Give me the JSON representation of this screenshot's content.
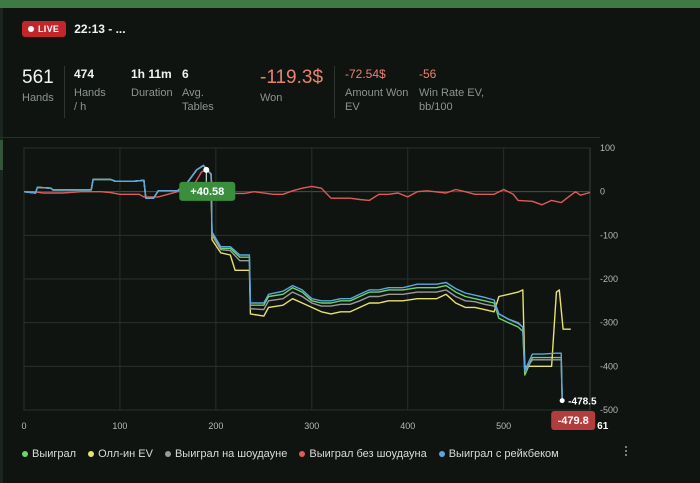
{
  "session": {
    "live_label": "LIVE",
    "title": "22:13 - ..."
  },
  "stats": [
    {
      "value": "561",
      "label": "Hands",
      "big": true,
      "red": false
    },
    {
      "value": "474",
      "label": "Hands / h",
      "big": false,
      "red": false
    },
    {
      "value": "1h 11m",
      "label": "Duration",
      "big": false,
      "red": false
    },
    {
      "value": "6",
      "label": "Avg. Tables",
      "big": false,
      "red": false
    },
    {
      "value": "-119.3$",
      "label": "Won",
      "big": true,
      "red": true
    },
    {
      "value": "-72.54$",
      "label": "Amount Won EV",
      "big": false,
      "red": true
    },
    {
      "value": "-56",
      "label": "Win Rate EV, bb/100",
      "big": false,
      "red": true
    }
  ],
  "chart_data": {
    "type": "line",
    "xlim": [
      0,
      590
    ],
    "ylim": [
      -500,
      100
    ],
    "x_ticks": [
      "0",
      "100",
      "200",
      "300",
      "400",
      "500"
    ],
    "x_tick_values": [
      0,
      100,
      200,
      300,
      400,
      500
    ],
    "y_ticks": [
      "100",
      "0",
      "-100",
      "-200",
      "-300",
      "-400",
      "-500"
    ],
    "y_tick_values": [
      100,
      0,
      -100,
      -200,
      -300,
      -400,
      -500
    ],
    "grid": true,
    "legend_position": "bottom-left",
    "series": [
      {
        "name": "Выиграл",
        "color": "#6fd46a",
        "points": [
          [
            0,
            0
          ],
          [
            12,
            -3
          ],
          [
            14,
            10
          ],
          [
            28,
            8
          ],
          [
            30,
            4
          ],
          [
            45,
            4
          ],
          [
            55,
            4
          ],
          [
            70,
            4
          ],
          [
            72,
            28
          ],
          [
            90,
            28
          ],
          [
            95,
            24
          ],
          [
            115,
            24
          ],
          [
            125,
            26
          ],
          [
            127,
            -15
          ],
          [
            135,
            -15
          ],
          [
            140,
            2
          ],
          [
            160,
            2
          ],
          [
            170,
            20
          ],
          [
            180,
            50
          ],
          [
            187,
            60
          ],
          [
            195,
            40
          ],
          [
            196,
            -95
          ],
          [
            205,
            -130
          ],
          [
            215,
            -130
          ],
          [
            225,
            -150
          ],
          [
            235,
            -150
          ],
          [
            236,
            -260
          ],
          [
            250,
            -260
          ],
          [
            255,
            -240
          ],
          [
            270,
            -235
          ],
          [
            280,
            -220
          ],
          [
            290,
            -230
          ],
          [
            300,
            -250
          ],
          [
            310,
            -255
          ],
          [
            320,
            -255
          ],
          [
            330,
            -250
          ],
          [
            340,
            -250
          ],
          [
            350,
            -240
          ],
          [
            360,
            -230
          ],
          [
            370,
            -230
          ],
          [
            380,
            -225
          ],
          [
            395,
            -225
          ],
          [
            410,
            -220
          ],
          [
            430,
            -220
          ],
          [
            440,
            -215
          ],
          [
            450,
            -230
          ],
          [
            460,
            -240
          ],
          [
            470,
            -245
          ],
          [
            480,
            -250
          ],
          [
            490,
            -255
          ],
          [
            495,
            -290
          ],
          [
            505,
            -300
          ],
          [
            515,
            -310
          ],
          [
            520,
            -320
          ],
          [
            522,
            -420
          ],
          [
            530,
            -380
          ],
          [
            540,
            -380
          ],
          [
            555,
            -380
          ],
          [
            560,
            -380
          ],
          [
            561,
            -479.8
          ]
        ]
      },
      {
        "name": "Олл-ин EV",
        "color": "#e6e26a",
        "points": [
          [
            0,
            0
          ],
          [
            12,
            -3
          ],
          [
            14,
            10
          ],
          [
            28,
            8
          ],
          [
            30,
            4
          ],
          [
            45,
            4
          ],
          [
            55,
            4
          ],
          [
            70,
            4
          ],
          [
            72,
            28
          ],
          [
            90,
            28
          ],
          [
            95,
            24
          ],
          [
            115,
            24
          ],
          [
            125,
            26
          ],
          [
            127,
            -15
          ],
          [
            135,
            -15
          ],
          [
            140,
            2
          ],
          [
            160,
            2
          ],
          [
            170,
            20
          ],
          [
            180,
            50
          ],
          [
            187,
            60
          ],
          [
            195,
            40
          ],
          [
            196,
            -110
          ],
          [
            205,
            -140
          ],
          [
            215,
            -145
          ],
          [
            220,
            -180
          ],
          [
            235,
            -180
          ],
          [
            236,
            -280
          ],
          [
            250,
            -285
          ],
          [
            255,
            -265
          ],
          [
            270,
            -260
          ],
          [
            280,
            -245
          ],
          [
            290,
            -255
          ],
          [
            300,
            -265
          ],
          [
            310,
            -275
          ],
          [
            320,
            -280
          ],
          [
            330,
            -275
          ],
          [
            340,
            -275
          ],
          [
            350,
            -265
          ],
          [
            360,
            -255
          ],
          [
            370,
            -255
          ],
          [
            380,
            -250
          ],
          [
            395,
            -250
          ],
          [
            410,
            -245
          ],
          [
            430,
            -245
          ],
          [
            440,
            -235
          ],
          [
            450,
            -255
          ],
          [
            460,
            -265
          ],
          [
            470,
            -265
          ],
          [
            480,
            -270
          ],
          [
            490,
            -275
          ],
          [
            495,
            -240
          ],
          [
            505,
            -235
          ],
          [
            515,
            -230
          ],
          [
            520,
            -225
          ],
          [
            522,
            -400
          ],
          [
            530,
            -400
          ],
          [
            540,
            -400
          ],
          [
            550,
            -400
          ],
          [
            555,
            -230
          ],
          [
            558,
            -225
          ],
          [
            562,
            -315
          ],
          [
            570,
            -315
          ]
        ]
      },
      {
        "name": "Выиграл на шоудауне",
        "color": "#9a9a9a",
        "points": [
          [
            0,
            0
          ],
          [
            12,
            -3
          ],
          [
            14,
            10
          ],
          [
            28,
            8
          ],
          [
            30,
            4
          ],
          [
            45,
            4
          ],
          [
            55,
            4
          ],
          [
            70,
            4
          ],
          [
            72,
            28
          ],
          [
            90,
            28
          ],
          [
            95,
            24
          ],
          [
            115,
            24
          ],
          [
            125,
            26
          ],
          [
            127,
            -15
          ],
          [
            135,
            -15
          ],
          [
            140,
            2
          ],
          [
            160,
            2
          ],
          [
            170,
            20
          ],
          [
            180,
            50
          ],
          [
            187,
            60
          ],
          [
            195,
            40
          ],
          [
            196,
            -100
          ],
          [
            205,
            -133
          ],
          [
            215,
            -135
          ],
          [
            225,
            -158
          ],
          [
            235,
            -158
          ],
          [
            236,
            -268
          ],
          [
            250,
            -270
          ],
          [
            255,
            -250
          ],
          [
            270,
            -245
          ],
          [
            280,
            -230
          ],
          [
            290,
            -240
          ],
          [
            300,
            -255
          ],
          [
            310,
            -262
          ],
          [
            320,
            -262
          ],
          [
            330,
            -258
          ],
          [
            340,
            -258
          ],
          [
            350,
            -250
          ],
          [
            360,
            -240
          ],
          [
            370,
            -240
          ],
          [
            380,
            -235
          ],
          [
            395,
            -235
          ],
          [
            410,
            -230
          ],
          [
            430,
            -230
          ],
          [
            440,
            -225
          ],
          [
            450,
            -240
          ],
          [
            460,
            -250
          ],
          [
            470,
            -252
          ],
          [
            480,
            -258
          ],
          [
            490,
            -262
          ],
          [
            495,
            -280
          ],
          [
            505,
            -292
          ],
          [
            515,
            -300
          ],
          [
            520,
            -310
          ],
          [
            522,
            -410
          ],
          [
            530,
            -385
          ],
          [
            540,
            -385
          ],
          [
            555,
            -385
          ],
          [
            560,
            -385
          ],
          [
            561,
            -478.5
          ]
        ]
      },
      {
        "name": "Выиграл без шоудауна",
        "color": "#e05a5a",
        "points": [
          [
            0,
            0
          ],
          [
            10,
            0
          ],
          [
            20,
            -3
          ],
          [
            40,
            -3
          ],
          [
            60,
            0
          ],
          [
            80,
            0
          ],
          [
            90,
            -2
          ],
          [
            100,
            -6
          ],
          [
            120,
            -6
          ],
          [
            125,
            -12
          ],
          [
            140,
            -12
          ],
          [
            150,
            -6
          ],
          [
            160,
            0
          ],
          [
            175,
            8
          ],
          [
            185,
            45
          ],
          [
            190,
            50
          ],
          [
            195,
            40
          ],
          [
            196,
            10
          ],
          [
            210,
            -4
          ],
          [
            230,
            -4
          ],
          [
            240,
            0
          ],
          [
            260,
            -6
          ],
          [
            270,
            -6
          ],
          [
            280,
            2
          ],
          [
            290,
            8
          ],
          [
            300,
            12
          ],
          [
            310,
            8
          ],
          [
            320,
            -15
          ],
          [
            340,
            -15
          ],
          [
            350,
            -18
          ],
          [
            360,
            -20
          ],
          [
            370,
            -6
          ],
          [
            380,
            -6
          ],
          [
            390,
            -3
          ],
          [
            400,
            -12
          ],
          [
            410,
            0
          ],
          [
            420,
            2
          ],
          [
            440,
            -3
          ],
          [
            450,
            5
          ],
          [
            460,
            0
          ],
          [
            470,
            -6
          ],
          [
            490,
            -6
          ],
          [
            500,
            5
          ],
          [
            510,
            -6
          ],
          [
            515,
            -20
          ],
          [
            530,
            -22
          ],
          [
            540,
            -30
          ],
          [
            550,
            -20
          ],
          [
            560,
            -25
          ],
          [
            570,
            -8
          ],
          [
            575,
            0
          ],
          [
            580,
            -8
          ],
          [
            590,
            -2
          ]
        ]
      },
      {
        "name": "Выиграл с рейкбеком",
        "color": "#5aa8e0",
        "points": [
          [
            0,
            0
          ],
          [
            12,
            -3
          ],
          [
            14,
            10
          ],
          [
            28,
            8
          ],
          [
            30,
            4
          ],
          [
            45,
            4
          ],
          [
            55,
            4
          ],
          [
            70,
            4
          ],
          [
            72,
            28
          ],
          [
            90,
            28
          ],
          [
            95,
            24
          ],
          [
            115,
            24
          ],
          [
            125,
            26
          ],
          [
            127,
            -15
          ],
          [
            135,
            -15
          ],
          [
            140,
            2
          ],
          [
            160,
            2
          ],
          [
            170,
            20
          ],
          [
            180,
            50
          ],
          [
            187,
            60
          ],
          [
            195,
            40
          ],
          [
            196,
            -92
          ],
          [
            205,
            -126
          ],
          [
            215,
            -126
          ],
          [
            225,
            -145
          ],
          [
            235,
            -145
          ],
          [
            236,
            -255
          ],
          [
            250,
            -255
          ],
          [
            255,
            -235
          ],
          [
            270,
            -228
          ],
          [
            280,
            -215
          ],
          [
            290,
            -225
          ],
          [
            300,
            -245
          ],
          [
            310,
            -250
          ],
          [
            320,
            -250
          ],
          [
            330,
            -245
          ],
          [
            340,
            -245
          ],
          [
            350,
            -235
          ],
          [
            360,
            -225
          ],
          [
            370,
            -225
          ],
          [
            380,
            -220
          ],
          [
            395,
            -220
          ],
          [
            410,
            -212
          ],
          [
            430,
            -212
          ],
          [
            440,
            -208
          ],
          [
            450,
            -222
          ],
          [
            460,
            -232
          ],
          [
            470,
            -237
          ],
          [
            480,
            -242
          ],
          [
            490,
            -248
          ],
          [
            495,
            -280
          ],
          [
            505,
            -292
          ],
          [
            515,
            -302
          ],
          [
            520,
            -310
          ],
          [
            522,
            -410
          ],
          [
            530,
            -372
          ],
          [
            540,
            -372
          ],
          [
            555,
            -370
          ],
          [
            560,
            -370
          ],
          [
            561,
            -475
          ]
        ]
      }
    ],
    "annotations": [
      {
        "text": "+40.58",
        "x": 190,
        "y": 50,
        "color": "#3a8e3e"
      },
      {
        "text": "-479.8",
        "x": 561,
        "y": -479.8,
        "color": "#b33c3c"
      }
    ],
    "end_labels": [
      {
        "text": "-478.5",
        "y": -478.5
      }
    ],
    "clipped_tick_fragment": "61"
  }
}
